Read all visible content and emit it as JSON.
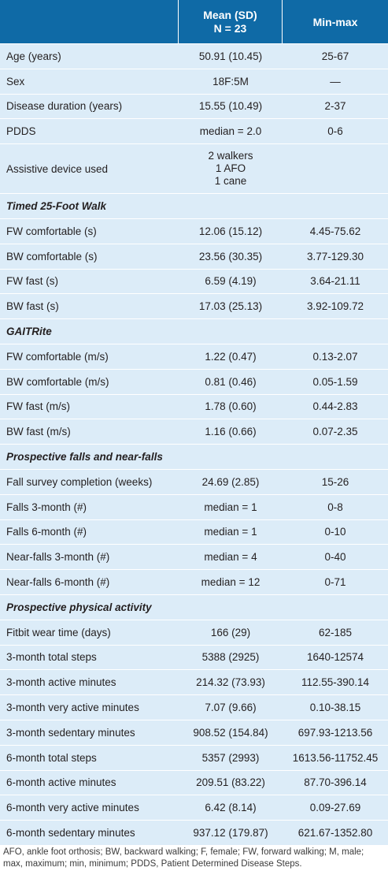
{
  "header": {
    "col1": "",
    "col2_line1": "Mean (SD)",
    "col2_line2": "N = 23",
    "col3": "Min-max"
  },
  "rows": [
    {
      "label": "Age (years)",
      "mean": "50.91 (10.45)",
      "range": "25-67"
    },
    {
      "label": "Sex",
      "mean": "18F:5M",
      "range": "—"
    },
    {
      "label": "Disease duration (years)",
      "mean": "15.55 (10.49)",
      "range": "2-37"
    },
    {
      "label": "PDDS",
      "mean": "median = 2.0",
      "range": "0-6"
    },
    {
      "label": "Assistive device used",
      "mean_lines": [
        "2 walkers",
        "1 AFO",
        "1 cane"
      ],
      "range": ""
    },
    {
      "section": "Timed 25-Foot Walk"
    },
    {
      "label": "FW comfortable (s)",
      "mean": "12.06 (15.12)",
      "range": "4.45-75.62"
    },
    {
      "label": "BW comfortable (s)",
      "mean": "23.56 (30.35)",
      "range": "3.77-129.30"
    },
    {
      "label": "FW fast (s)",
      "mean": "6.59 (4.19)",
      "range": "3.64-21.11"
    },
    {
      "label": "BW fast (s)",
      "mean": "17.03 (25.13)",
      "range": "3.92-109.72"
    },
    {
      "section": "GAITRite"
    },
    {
      "label": "FW comfortable (m/s)",
      "mean": "1.22 (0.47)",
      "range": "0.13-2.07"
    },
    {
      "label": "BW comfortable (m/s)",
      "mean": "0.81 (0.46)",
      "range": "0.05-1.59"
    },
    {
      "label": "FW fast (m/s)",
      "mean": "1.78 (0.60)",
      "range": "0.44-2.83"
    },
    {
      "label": "BW fast (m/s)",
      "mean": "1.16 (0.66)",
      "range": "0.07-2.35"
    },
    {
      "section": "Prospective falls and near-falls"
    },
    {
      "label": "Fall survey completion (weeks)",
      "mean": "24.69 (2.85)",
      "range": "15-26"
    },
    {
      "label": "Falls 3-month (#)",
      "mean": "median = 1",
      "range": "0-8"
    },
    {
      "label": "Falls 6-month (#)",
      "mean": "median = 1",
      "range": "0-10"
    },
    {
      "label": "Near-falls 3-month (#)",
      "mean": "median = 4",
      "range": "0-40"
    },
    {
      "label": "Near-falls 6-month (#)",
      "mean": "median = 12",
      "range": "0-71"
    },
    {
      "section": "Prospective physical activity"
    },
    {
      "label": "Fitbit wear time (days)",
      "mean": "166 (29)",
      "range": "62-185"
    },
    {
      "label": "3-month total steps",
      "mean": "5388 (2925)",
      "range": "1640-12574"
    },
    {
      "label": "3-month active minutes",
      "mean": "214.32 (73.93)",
      "range": "112.55-390.14"
    },
    {
      "label": "3-month very active minutes",
      "mean": "7.07 (9.66)",
      "range": "0.10-38.15"
    },
    {
      "label": "3-month sedentary minutes",
      "mean": "908.52 (154.84)",
      "range": "697.93-1213.56"
    },
    {
      "label": "6-month total steps",
      "mean": "5357 (2993)",
      "range": "1613.56-11752.45"
    },
    {
      "label": "6-month active minutes",
      "mean": "209.51 (83.22)",
      "range": "87.70-396.14"
    },
    {
      "label": "6-month very active minutes",
      "mean": "6.42 (8.14)",
      "range": "0.09-27.69"
    },
    {
      "label": "6-month sedentary minutes",
      "mean": "937.12 (179.87)",
      "range": "621.67-1352.80"
    }
  ],
  "footnote": "AFO, ankle foot orthosis; BW, backward walking; F, female; FW, forward walking; M, male; max, maximum; min, minimum; PDDS, Patient Determined Disease Steps."
}
